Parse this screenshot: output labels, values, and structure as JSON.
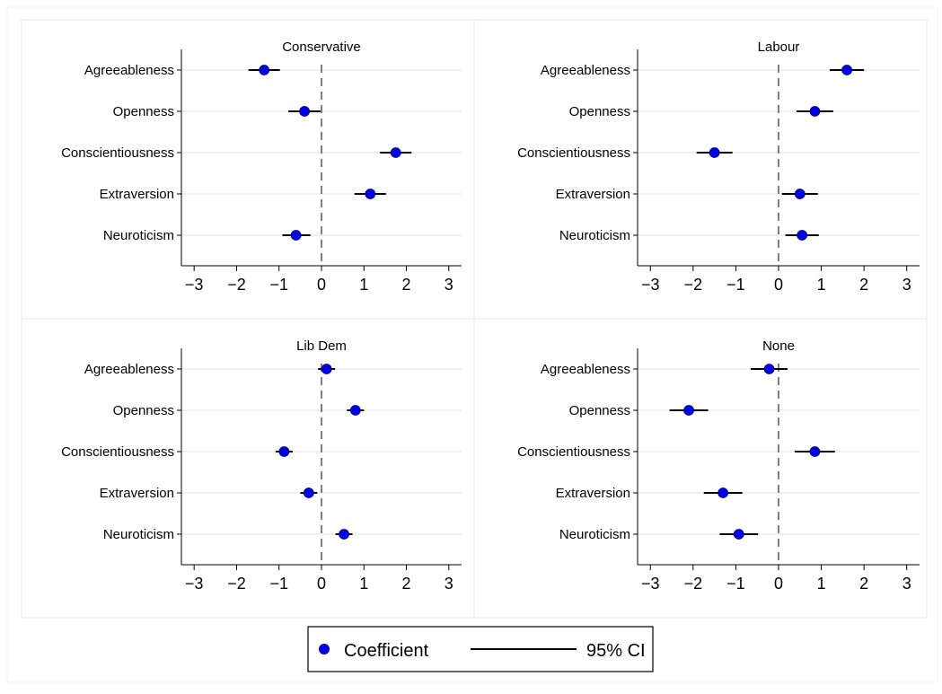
{
  "chart_data": [
    {
      "type": "scatter",
      "title": "Conservative",
      "categories": [
        "Agreeableness",
        "Openness",
        "Conscientiousness",
        "Extraversion",
        "Neuroticism"
      ],
      "coefficients": [
        -1.35,
        -0.4,
        1.75,
        1.15,
        -0.6
      ],
      "ci_lower": [
        -1.72,
        -0.78,
        1.38,
        0.78,
        -0.92
      ],
      "ci_upper": [
        -0.98,
        -0.02,
        2.12,
        1.52,
        -0.26
      ],
      "xlim": [
        -3.3,
        3.3
      ],
      "xticks": [
        "−3",
        "−2",
        "−1",
        "0",
        "1",
        "2",
        "3"
      ],
      "reference_line": 0
    },
    {
      "type": "scatter",
      "title": "Labour",
      "categories": [
        "Agreeableness",
        "Openness",
        "Conscientiousness",
        "Extraversion",
        "Neuroticism"
      ],
      "coefficients": [
        1.6,
        0.85,
        -1.5,
        0.5,
        0.55
      ],
      "ci_lower": [
        1.2,
        0.42,
        -1.92,
        0.08,
        0.16
      ],
      "ci_upper": [
        2.0,
        1.28,
        -1.08,
        0.92,
        0.94
      ],
      "xlim": [
        -3.3,
        3.3
      ],
      "xticks": [
        "−3",
        "−2",
        "−1",
        "0",
        "1",
        "2",
        "3"
      ],
      "reference_line": 0
    },
    {
      "type": "scatter",
      "title": "Lib Dem",
      "categories": [
        "Agreeableness",
        "Openness",
        "Conscientiousness",
        "Extraversion",
        "Neuroticism"
      ],
      "coefficients": [
        0.12,
        0.8,
        -0.88,
        -0.3,
        0.53
      ],
      "ci_lower": [
        -0.08,
        0.6,
        -1.08,
        -0.5,
        0.33
      ],
      "ci_upper": [
        0.32,
        1.0,
        -0.68,
        -0.1,
        0.73
      ],
      "xlim": [
        -3.3,
        3.3
      ],
      "xticks": [
        "−3",
        "−2",
        "−1",
        "0",
        "1",
        "2",
        "3"
      ],
      "reference_line": 0
    },
    {
      "type": "scatter",
      "title": "None",
      "categories": [
        "Agreeableness",
        "Openness",
        "Conscientiousness",
        "Extraversion",
        "Neuroticism"
      ],
      "coefficients": [
        -0.22,
        -2.1,
        0.85,
        -1.3,
        -0.93
      ],
      "ci_lower": [
        -0.65,
        -2.55,
        0.38,
        -1.75,
        -1.38
      ],
      "ci_upper": [
        0.21,
        -1.65,
        1.32,
        -0.85,
        -0.48
      ],
      "xlim": [
        -3.3,
        3.3
      ],
      "xticks": [
        "−3",
        "−2",
        "−1",
        "0",
        "1",
        "2",
        "3"
      ],
      "reference_line": 0
    }
  ],
  "legend": {
    "placement": "bottom-center",
    "coefficient_label": "Coefficient",
    "ci_label": "95% CI"
  },
  "colors": {
    "point": "#0000e0",
    "ci_line": "#000000",
    "gridline": "#e8eef2",
    "reference_line": "#808080"
  }
}
